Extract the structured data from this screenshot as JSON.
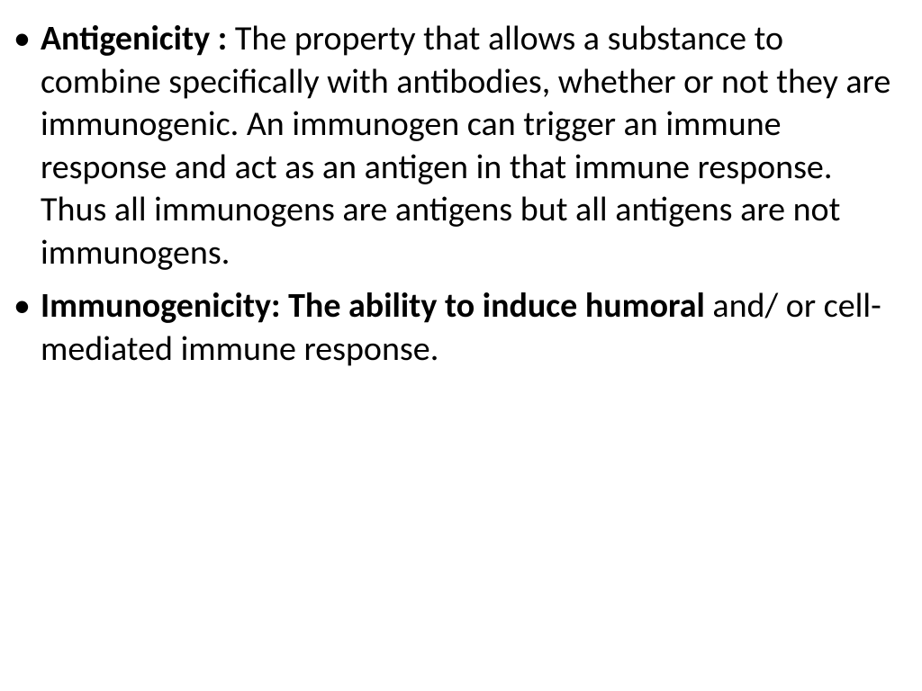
{
  "bullets": [
    {
      "term": "Antigenicity : ",
      "definition": "The property that allows a substance to combine specifically with antibodies, whether or not they are immunogenic. An immunogen can trigger an immune response and  act as an antigen in that immune response. Thus all immunogens are antigens but all antigens are not immunogens."
    },
    {
      "term": "Immunogenicity: The ability to induce humoral ",
      "definition_before": "",
      "definition_after": "and/ or cell-mediated immune response",
      "period": "."
    }
  ],
  "styling": {
    "background_color": "#ffffff",
    "text_color": "#000000",
    "font_family": "Calibri, Arial, sans-serif",
    "font_size_pt": 38,
    "line_height": 1.25,
    "bullet_char": "•"
  }
}
